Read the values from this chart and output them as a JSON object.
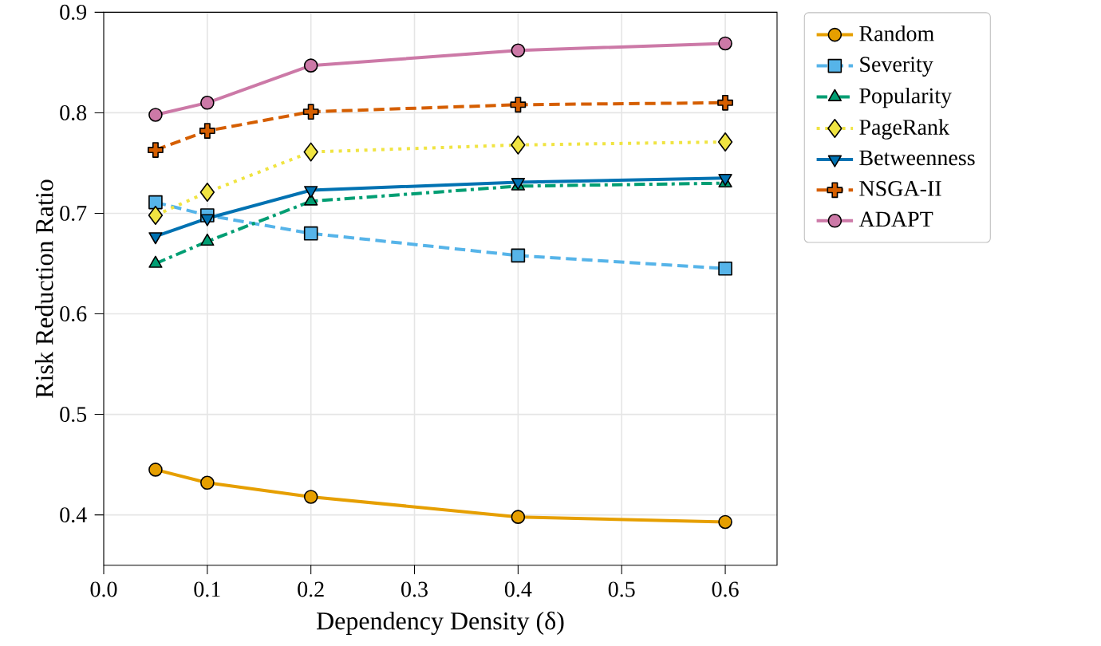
{
  "chart_data": {
    "type": "line",
    "xlabel": "Dependency Density (δ)",
    "ylabel": "Risk Reduction Ratio",
    "x": [
      0.05,
      0.1,
      0.2,
      0.4,
      0.6
    ],
    "xlim": [
      0,
      0.65
    ],
    "ylim": [
      0.35,
      0.9
    ],
    "xticks": [
      {
        "value": 0,
        "label": "0.0"
      },
      0.1,
      0.2,
      0.3,
      0.4,
      0.5,
      0.6
    ],
    "yticks": [
      0.4,
      0.5,
      0.6,
      0.7,
      0.8,
      0.9
    ],
    "grid": true,
    "legend": "right",
    "series": [
      {
        "name": "Random",
        "color": "#e69f00",
        "values": [
          0.445,
          0.432,
          0.418,
          0.398,
          0.393
        ],
        "marker": "circle",
        "line_style": "solid"
      },
      {
        "name": "Severity",
        "color": "#56b4e9",
        "values": [
          0.711,
          0.698,
          0.68,
          0.658,
          0.645
        ],
        "marker": "square",
        "line_style": "dashed"
      },
      {
        "name": "Popularity",
        "color": "#009e73",
        "values": [
          0.65,
          0.672,
          0.712,
          0.727,
          0.73
        ],
        "marker": "triangle",
        "line_style": "dashdot"
      },
      {
        "name": "PageRank",
        "color": "#f0e442",
        "values": [
          0.698,
          0.721,
          0.761,
          0.768,
          0.771
        ],
        "marker": "diamond",
        "line_style": "dotted"
      },
      {
        "name": "Betweenness",
        "color": "#0072b2",
        "values": [
          0.677,
          0.695,
          0.723,
          0.731,
          0.735
        ],
        "marker": "triangle_down",
        "line_style": "solid"
      },
      {
        "name": "NSGA-II",
        "color": "#d55e00",
        "values": [
          0.763,
          0.782,
          0.801,
          0.808,
          0.81
        ],
        "marker": "plus",
        "line_style": "dashed"
      },
      {
        "name": "ADAPT",
        "color": "#cc79a7",
        "values": [
          0.798,
          0.81,
          0.847,
          0.862,
          0.869
        ],
        "marker": "circle",
        "line_style": "solid"
      }
    ]
  }
}
